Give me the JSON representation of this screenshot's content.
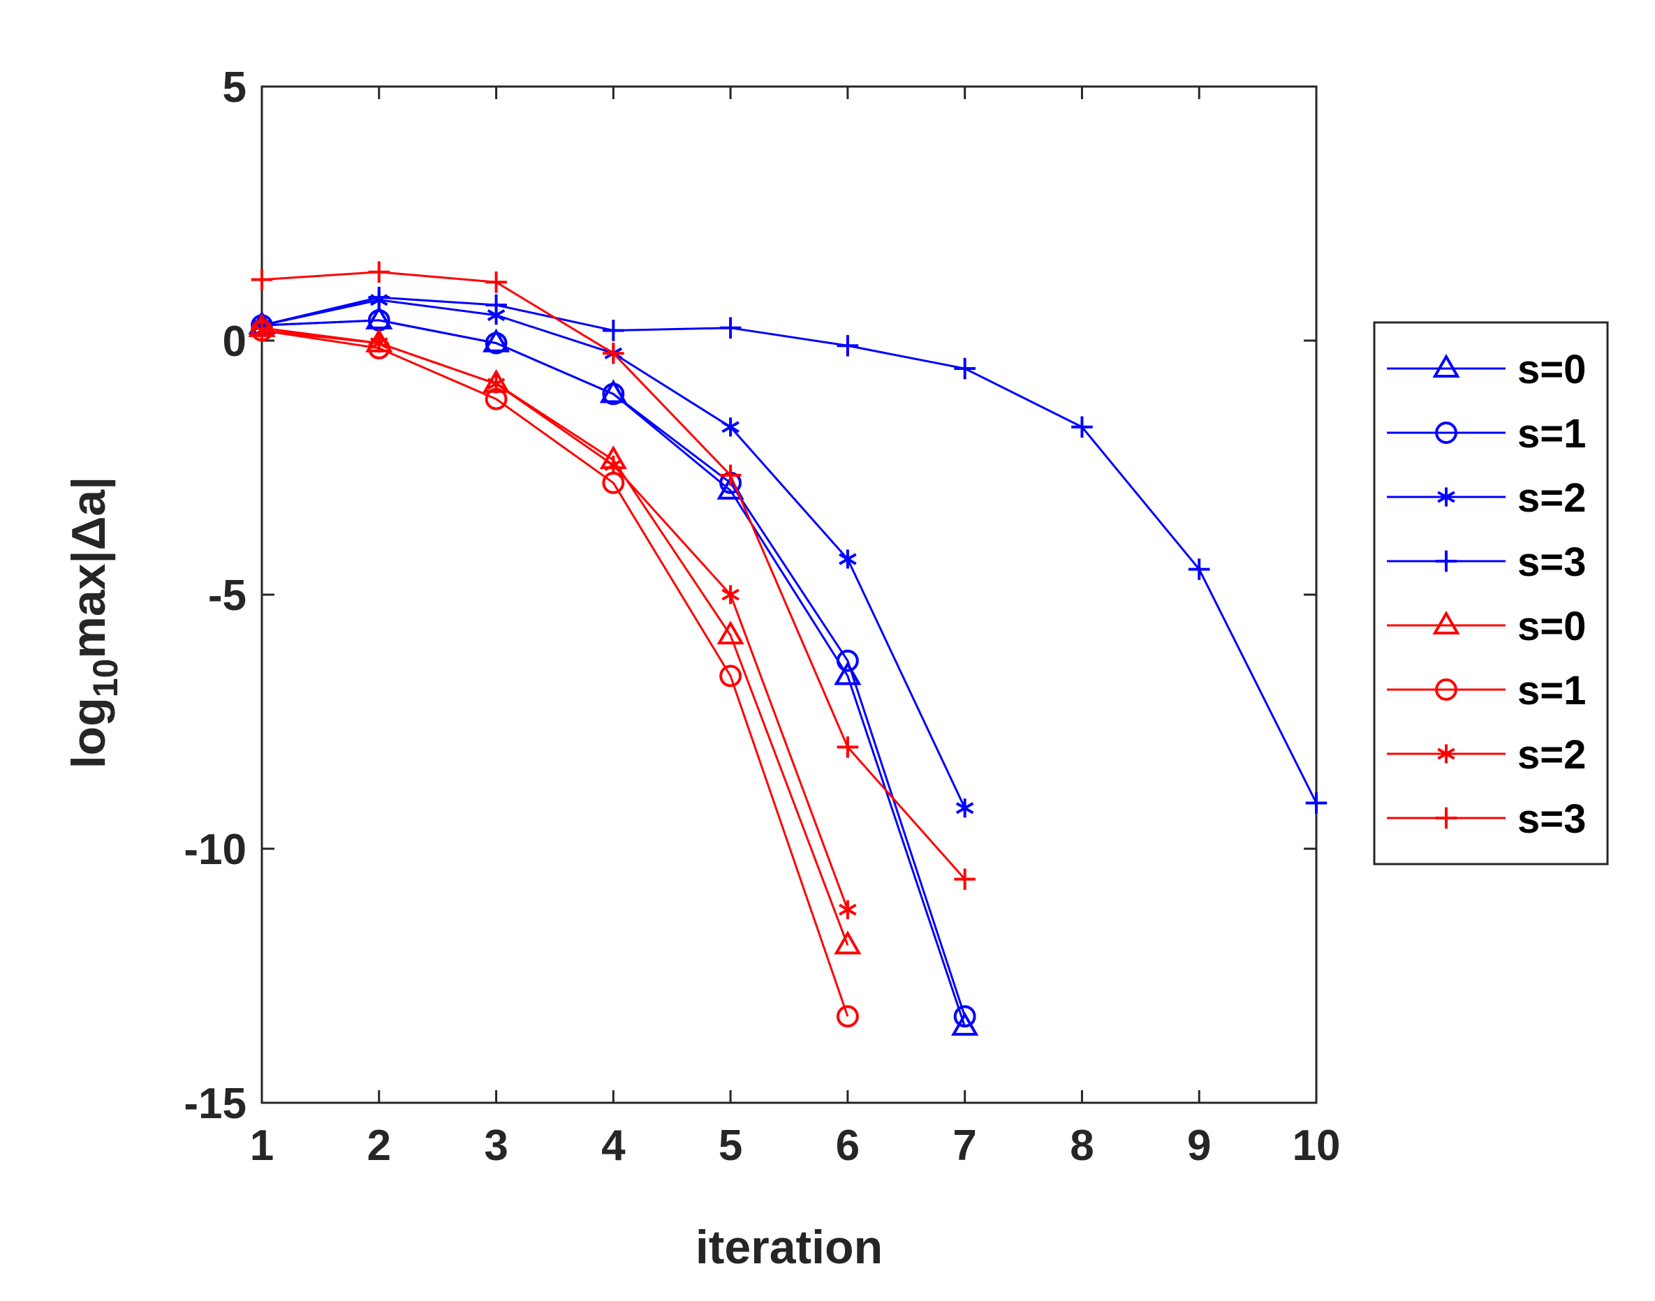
{
  "chart_data": {
    "type": "line",
    "title": "",
    "xlabel": "iteration",
    "ylabel_parts": {
      "base": "log",
      "sub": "10",
      "rest": "max|Δa|"
    },
    "xlim": [
      1,
      10
    ],
    "ylim": [
      -15,
      5
    ],
    "x_ticks": [
      "1",
      "2",
      "3",
      "4",
      "5",
      "6",
      "7",
      "8",
      "9",
      "10"
    ],
    "y_ticks": [
      "5",
      "0",
      "-5",
      "-10",
      "-15"
    ],
    "y_tick_values": [
      5,
      0,
      -5,
      -10,
      -15
    ],
    "x_tick_values": [
      1,
      2,
      3,
      4,
      5,
      6,
      7,
      8,
      9,
      10
    ],
    "grid": false,
    "legend_position": "outside-right",
    "series": [
      {
        "name": "s=0",
        "color": "#0000ff",
        "marker": "triangle",
        "x": [
          1,
          2,
          3,
          4,
          5,
          6,
          7
        ],
        "y": [
          0.3,
          0.4,
          -0.05,
          -1.05,
          -2.95,
          -6.6,
          -13.5
        ]
      },
      {
        "name": "s=1",
        "color": "#0000ff",
        "marker": "circle",
        "x": [
          1,
          2,
          3,
          4,
          5,
          6,
          7
        ],
        "y": [
          0.3,
          0.4,
          -0.05,
          -1.05,
          -2.8,
          -6.3,
          -13.3
        ]
      },
      {
        "name": "s=2",
        "color": "#0000ff",
        "marker": "asterisk",
        "x": [
          1,
          2,
          3,
          4,
          5,
          6,
          7
        ],
        "y": [
          0.3,
          0.8,
          0.5,
          -0.25,
          -1.7,
          -4.3,
          -9.2
        ]
      },
      {
        "name": "s=3",
        "color": "#0000ff",
        "marker": "plus",
        "x": [
          1,
          2,
          3,
          4,
          5,
          6,
          7,
          8,
          9,
          10
        ],
        "y": [
          0.3,
          0.85,
          0.7,
          0.2,
          0.25,
          -0.1,
          -0.55,
          -1.7,
          -4.5,
          -9.1
        ]
      },
      {
        "name": "s=0",
        "color": "#ff0000",
        "marker": "triangle",
        "x": [
          1,
          2,
          3,
          4,
          5,
          6
        ],
        "y": [
          0.25,
          -0.05,
          -0.85,
          -2.35,
          -5.8,
          -11.9
        ]
      },
      {
        "name": "s=1",
        "color": "#ff0000",
        "marker": "circle",
        "x": [
          1,
          2,
          3,
          4,
          5,
          6
        ],
        "y": [
          0.2,
          -0.15,
          -1.15,
          -2.8,
          -6.6,
          -13.3
        ]
      },
      {
        "name": "s=2",
        "color": "#ff0000",
        "marker": "asterisk",
        "x": [
          1,
          2,
          3,
          4,
          5,
          6
        ],
        "y": [
          0.2,
          -0.05,
          -0.85,
          -2.45,
          -5.0,
          -11.2
        ]
      },
      {
        "name": "s=3",
        "color": "#ff0000",
        "marker": "plus",
        "x": [
          1,
          2,
          3,
          4,
          5,
          6,
          7
        ],
        "y": [
          1.2,
          1.35,
          1.15,
          -0.25,
          -2.65,
          -8.0,
          -10.6
        ]
      }
    ]
  }
}
